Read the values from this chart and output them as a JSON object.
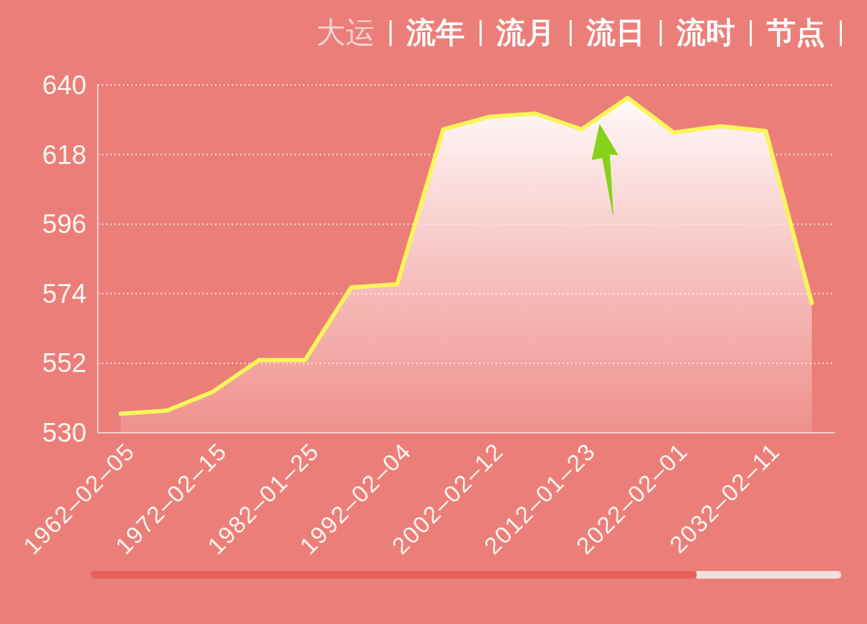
{
  "chart_data": {
    "type": "area",
    "annotations": [
      "大运",
      "流年",
      "流月",
      "流日",
      "流时",
      "节点"
    ],
    "categories": [
      "1962–02–05",
      null,
      "1972–02–15",
      null,
      "1982–01–25",
      null,
      "1992–02–04",
      null,
      "2002–02–12",
      null,
      "2012–01–23",
      null,
      "2022–02–01",
      null,
      "2032–02–11",
      null
    ],
    "series": [
      {
        "color": "#faf55a",
        "values": [
          536,
          537,
          543,
          553,
          553,
          576,
          577,
          626,
          630,
          631,
          626,
          636,
          625,
          627,
          625.5,
          571
        ]
      }
    ],
    "ylim": [
      530,
      640
    ],
    "yticks": [
      530,
      552,
      574,
      596,
      618,
      640
    ],
    "grid": "y"
  }
}
